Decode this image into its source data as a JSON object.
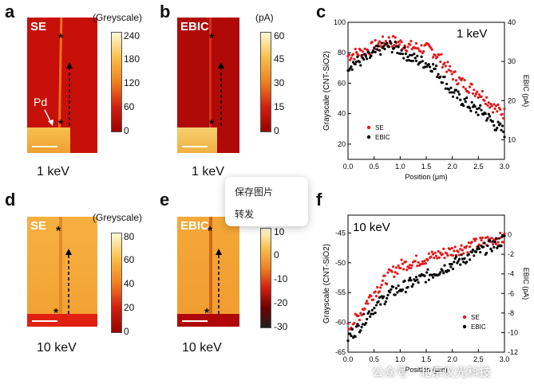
{
  "panels": {
    "a": {
      "letter": "a",
      "label": "SE",
      "energy": "1 keV",
      "pd_label": "Pd"
    },
    "b": {
      "letter": "b",
      "label": "EBIC",
      "energy": "1 keV"
    },
    "c": {
      "letter": "c"
    },
    "d": {
      "letter": "d",
      "label": "SE",
      "energy": "10 keV"
    },
    "e": {
      "letter": "e",
      "label": "EBIC",
      "energy": "10 keV"
    },
    "f": {
      "letter": "f"
    }
  },
  "colorbars": {
    "a": {
      "unit": "(Greyscale)",
      "ticks": [
        "240",
        "180",
        "120",
        "60",
        "0"
      ]
    },
    "b": {
      "unit": "(pA)",
      "ticks": [
        "60",
        "45",
        "30",
        "15",
        "0"
      ]
    },
    "d": {
      "unit": "(Greyscale)",
      "ticks": [
        "80",
        "60",
        "40",
        "20",
        "0"
      ]
    },
    "e": {
      "unit": "",
      "ticks": [
        "10",
        "0",
        "-10",
        "-20",
        "-30"
      ]
    }
  },
  "marker_symbol": "*",
  "context_menu": {
    "save_image": "保存图片",
    "forward": "转发"
  },
  "watermark": "公众号 · 北京仪光科技",
  "colors": {
    "se": "#e31a1c",
    "ebic": "#000000"
  },
  "chart_data": [
    {
      "id": "c",
      "type": "scatter",
      "annotation": "1 keV",
      "xlabel": "Position (μm)",
      "ylabel": "Grayscale (CNT-SiO2)",
      "y2label": "EBIC (pA)",
      "xlim": [
        0,
        3.0
      ],
      "ylim": [
        10,
        100
      ],
      "y2lim": [
        5,
        40
      ],
      "xticks": [
        "0.0",
        "0.5",
        "1.0",
        "1.5",
        "2.0",
        "2.5",
        "3.0"
      ],
      "yticks": [
        "20",
        "40",
        "60",
        "80",
        "100"
      ],
      "y2ticks": [
        "10",
        "20",
        "30",
        "40"
      ],
      "legend": [
        "SE",
        "EBIC"
      ],
      "series": [
        {
          "name": "SE",
          "axis": "left",
          "x": [
            0.0,
            0.2,
            0.4,
            0.6,
            0.8,
            1.0,
            1.2,
            1.4,
            1.6,
            1.8,
            2.0,
            2.2,
            2.4,
            2.6,
            2.8,
            3.0
          ],
          "y": [
            78,
            80,
            82,
            86,
            88,
            86,
            84,
            83,
            82,
            75,
            66,
            60,
            56,
            52,
            44,
            40
          ]
        },
        {
          "name": "EBIC",
          "axis": "right",
          "x": [
            0.0,
            0.2,
            0.4,
            0.6,
            0.8,
            1.0,
            1.2,
            1.4,
            1.6,
            1.8,
            2.0,
            2.2,
            2.4,
            2.6,
            2.8,
            3.0
          ],
          "y": [
            29,
            30,
            31,
            33,
            34,
            33,
            31,
            30,
            29,
            26,
            22,
            20,
            18,
            17,
            14,
            12
          ]
        }
      ]
    },
    {
      "id": "f",
      "type": "scatter",
      "annotation": "10 keV",
      "xlabel": "Position (μm)",
      "ylabel": "Grayscale (CNT-SiO2)",
      "y2label": "EBIC (pA)",
      "xlim": [
        0,
        3.0
      ],
      "ylim": [
        -65,
        -42
      ],
      "y2lim": [
        -12,
        2
      ],
      "xticks": [
        "0.0",
        "0.5",
        "1.0",
        "1.5",
        "2.0",
        "2.5",
        "3.0"
      ],
      "yticks": [
        "-45",
        "-50",
        "-55",
        "-60",
        "-65"
      ],
      "y2ticks": [
        "0",
        "-2",
        "-4",
        "-6",
        "-8",
        "-10",
        "-12"
      ],
      "legend": [
        "SE",
        "EBIC"
      ],
      "series": [
        {
          "name": "SE",
          "axis": "left",
          "x": [
            0.0,
            0.2,
            0.4,
            0.6,
            0.8,
            1.0,
            1.2,
            1.4,
            1.6,
            1.8,
            2.0,
            2.2,
            2.4,
            2.6,
            2.8,
            3.0
          ],
          "y": [
            -61,
            -59,
            -56,
            -54,
            -52,
            -50.5,
            -50,
            -49.5,
            -49,
            -48.5,
            -48,
            -47.5,
            -47,
            -46.5,
            -46,
            -46
          ]
        },
        {
          "name": "EBIC",
          "axis": "right",
          "x": [
            0.0,
            0.2,
            0.4,
            0.6,
            0.8,
            1.0,
            1.2,
            1.4,
            1.6,
            1.8,
            2.0,
            2.2,
            2.4,
            2.6,
            2.8,
            3.0
          ],
          "y": [
            -10.5,
            -9.5,
            -8,
            -7,
            -6,
            -5.5,
            -5,
            -4.5,
            -4,
            -3.5,
            -3,
            -2.5,
            -2,
            -1.5,
            -1,
            -0.5
          ]
        }
      ]
    }
  ]
}
